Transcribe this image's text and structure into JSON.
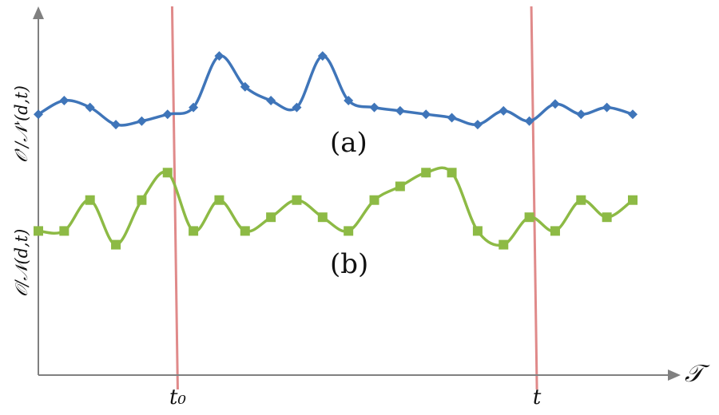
{
  "chart_data": {
    "type": "line",
    "xlabel": "𝒯",
    "annotations": {
      "a": "(a)",
      "b": "(b)"
    },
    "ylabels": {
      "a": "𝒪'/𝒩'(d,t)",
      "b": "𝒪/𝒩(d,t)"
    },
    "markers": [
      {
        "label": "t₀",
        "x": 5.3
      },
      {
        "label": "t",
        "x": 19.2
      }
    ],
    "xlim": [
      0,
      24
    ],
    "ylim": [
      0,
      10
    ],
    "grid": false,
    "series": [
      {
        "key": "a",
        "color": "#3f75b9",
        "marker": "diamond",
        "x": [
          0,
          1,
          2,
          3,
          4,
          5,
          6,
          7,
          8,
          9,
          10,
          11,
          12,
          13,
          14,
          15,
          16,
          17,
          18,
          19,
          20,
          21,
          22,
          23
        ],
        "y": [
          7.6,
          8.0,
          7.8,
          7.3,
          7.4,
          7.6,
          7.8,
          9.3,
          8.4,
          8.0,
          7.8,
          9.3,
          8.0,
          7.8,
          7.7,
          7.6,
          7.5,
          7.3,
          7.7,
          7.4,
          7.9,
          7.6,
          7.8,
          7.6
        ]
      },
      {
        "key": "b",
        "color": "#8dba45",
        "marker": "square",
        "x": [
          0,
          1,
          2,
          3,
          4,
          5,
          6,
          7,
          8,
          9,
          10,
          11,
          12,
          13,
          14,
          15,
          16,
          17,
          18,
          19,
          20,
          21,
          22,
          23
        ],
        "y": [
          4.2,
          4.2,
          5.1,
          3.8,
          5.1,
          5.9,
          4.2,
          5.1,
          4.2,
          4.6,
          5.1,
          4.6,
          4.2,
          5.1,
          5.5,
          5.9,
          5.9,
          4.2,
          3.8,
          4.6,
          4.2,
          5.1,
          4.6,
          5.1
        ]
      }
    ]
  }
}
